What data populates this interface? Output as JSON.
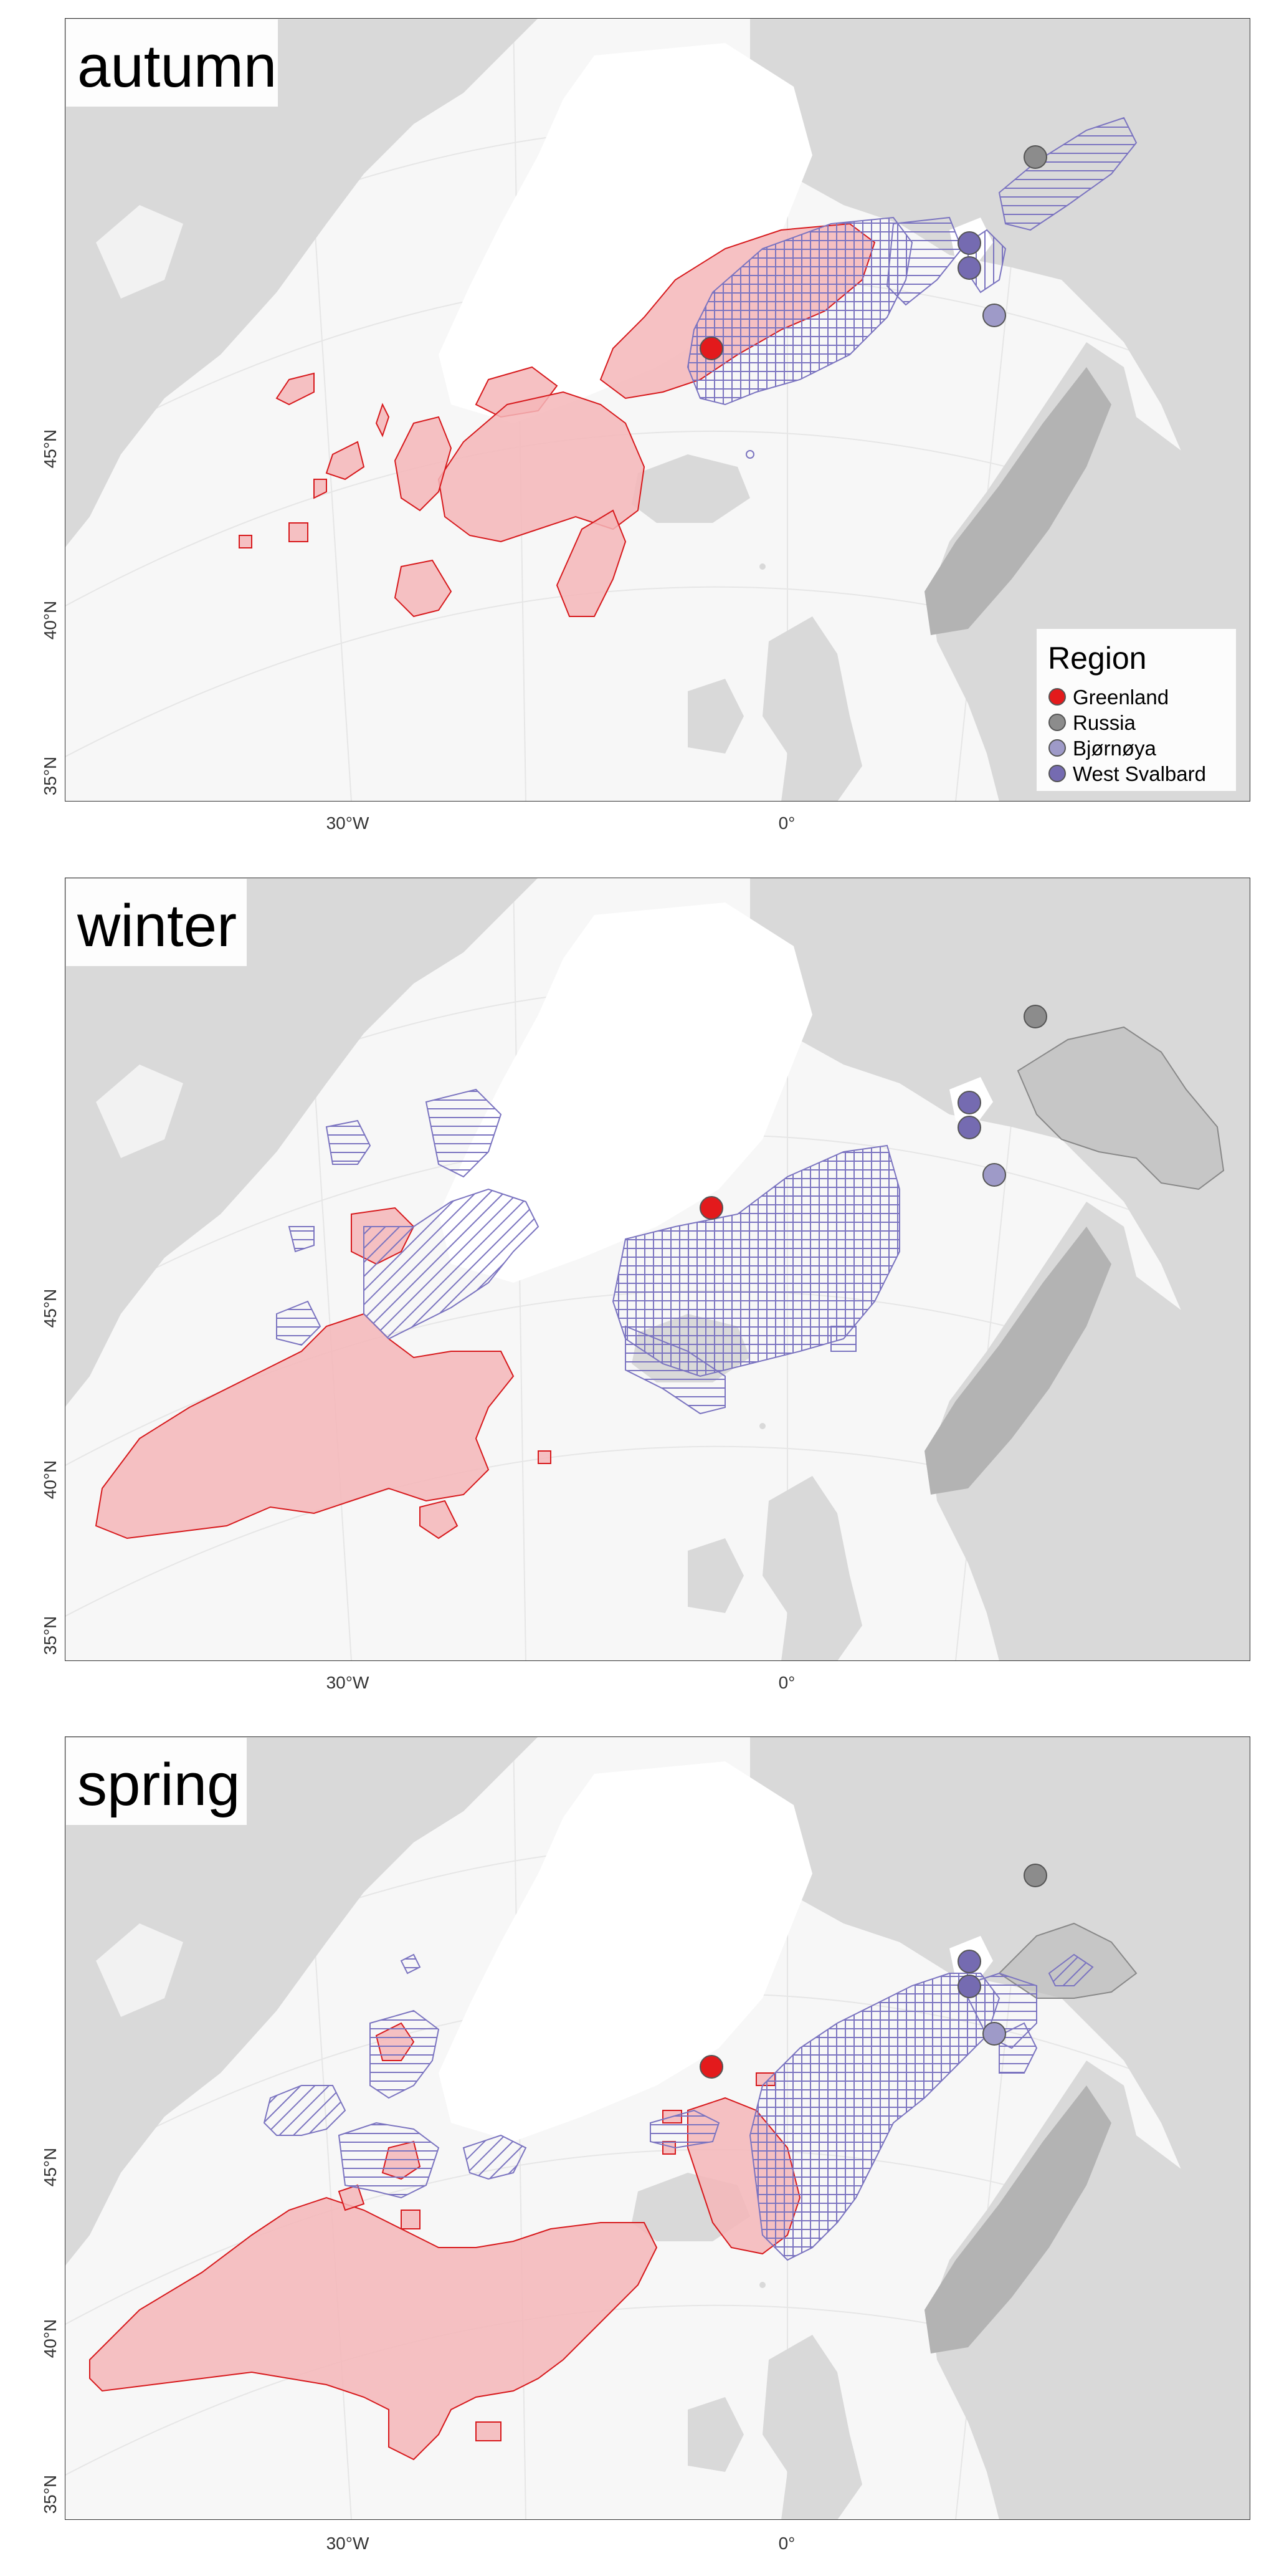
{
  "panels": [
    {
      "season": "autumn"
    },
    {
      "season": "winter"
    },
    {
      "season": "spring"
    }
  ],
  "axes": {
    "x_ticks": [
      "30°W",
      "0°"
    ],
    "y_ticks": [
      "45°N",
      "40°N",
      "35°N"
    ]
  },
  "legend": {
    "title": "Region",
    "items": [
      {
        "label": "Greenland",
        "color": "#e31a1c"
      },
      {
        "label": "Russia",
        "color": "#8c8c8c"
      },
      {
        "label": "Bjørnøya",
        "color": "#9e9ac8"
      },
      {
        "label": "West Svalbard",
        "color": "#756bb1"
      }
    ]
  },
  "colors": {
    "land": "#d9d9d9",
    "greenland": "#ffffff",
    "ocean": "#f7f7f7",
    "norway": "#b3b3b3",
    "greenland_fill": "#f4b6b8",
    "greenland_stroke": "#d7191c",
    "hatch_stroke": "#7b74c0",
    "russia_fill": "#bdbdbd"
  }
}
